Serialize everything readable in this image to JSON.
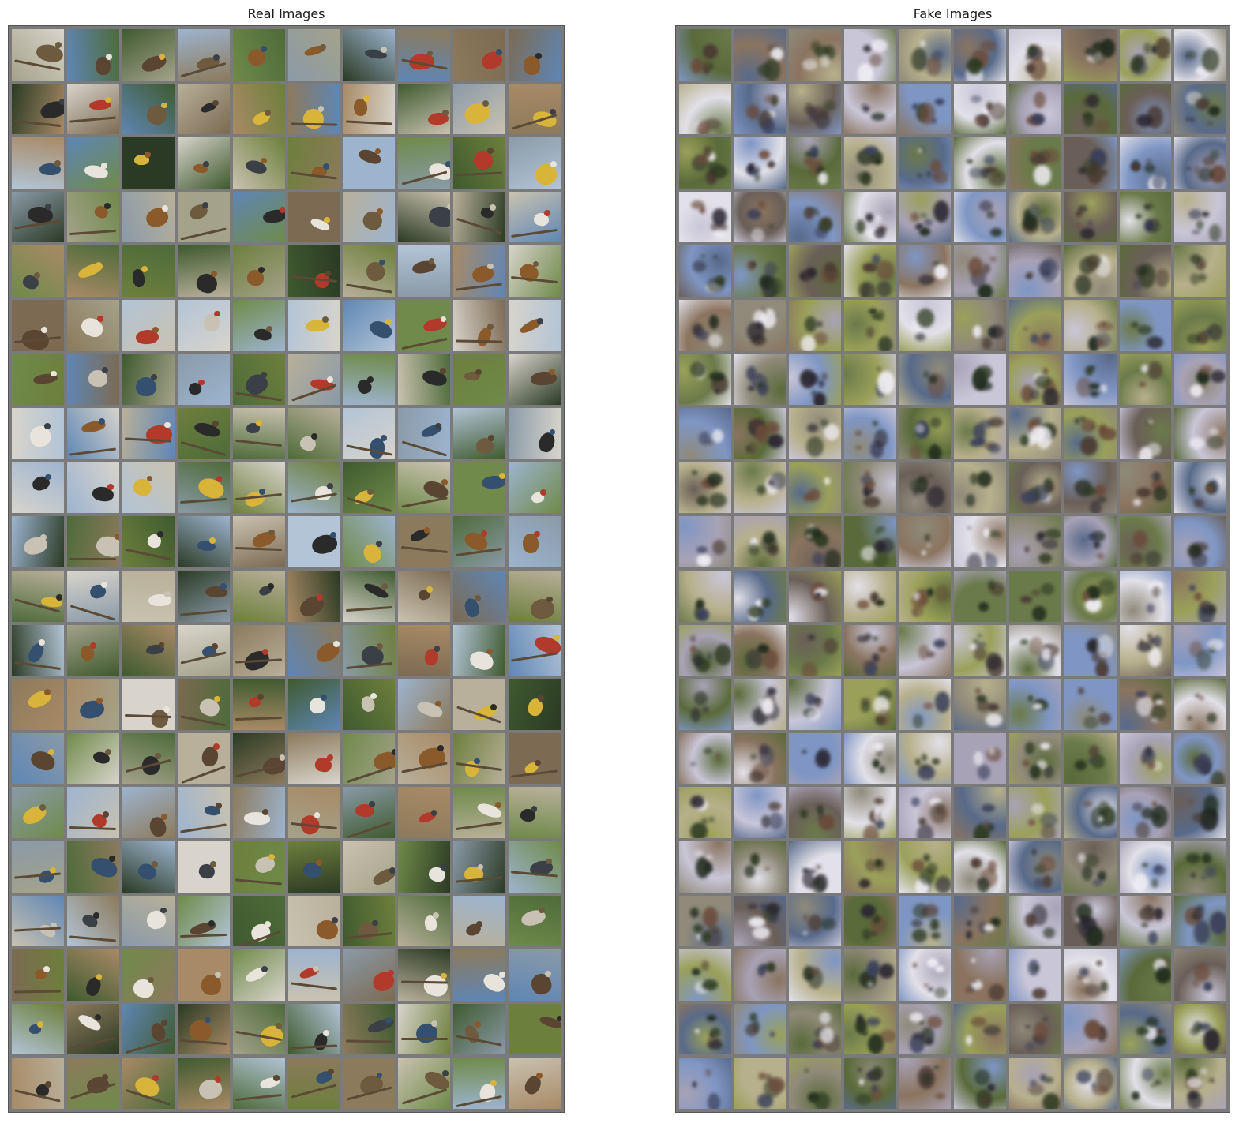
{
  "panels": {
    "real": {
      "title": "Real Images",
      "rows": 20,
      "cols": 10
    },
    "fake": {
      "title": "Fake Images",
      "rows": 20,
      "cols": 10
    }
  },
  "palette": {
    "real_backgrounds": [
      "#8a9aa8",
      "#6f8a4a",
      "#b8b09a",
      "#5f86b5",
      "#a4a28a",
      "#3f5a2f",
      "#c9c2b0",
      "#7c6a52",
      "#9db4cf",
      "#4e6b3a",
      "#d8d4cc",
      "#a88a66",
      "#6d7f3c",
      "#2b3a24",
      "#b2c4d6",
      "#8c7a5c"
    ],
    "real_birds": [
      "#2a2a2a",
      "#5a4532",
      "#c8c2b4",
      "#d9b43a",
      "#8b5a2b",
      "#3b3f46",
      "#b23a2a",
      "#e8e4dc",
      "#6e5a3e",
      "#34506e"
    ],
    "fake_backgrounds": [
      "#8f8a7a",
      "#6b7a4a",
      "#a8a2b6",
      "#c9c6d8",
      "#5a6a3a",
      "#8a7460",
      "#7f96c4",
      "#b7b08c",
      "#6a5f58",
      "#9aa05a",
      "#e2e0e8",
      "#586a8a"
    ],
    "fake_blobs": [
      "#2a2630",
      "#4a3a32",
      "#1f2a1c",
      "#6a4a3a",
      "#3a3f5a",
      "#f0eef4",
      "#2e3a22"
    ]
  }
}
